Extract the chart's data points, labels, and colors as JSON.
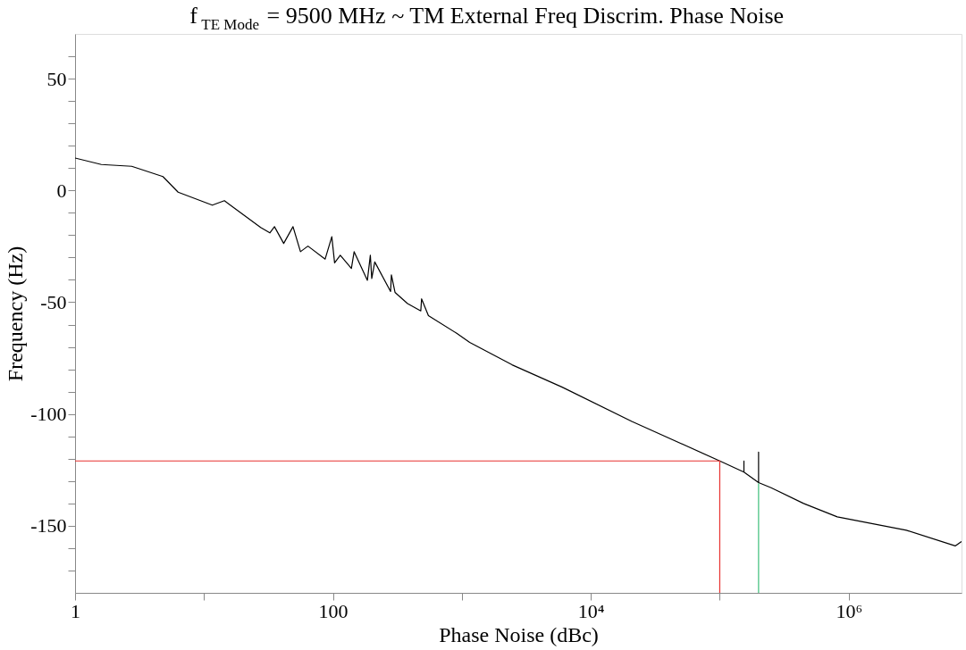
{
  "chart_data": {
    "type": "line",
    "title": "f$_{TE Mode}$ = 9500 MHz ~ TM External Freq Discrim. Phase Noise",
    "xlabel": "Phase Noise (dBc)",
    "ylabel": "Frequency (Hz)",
    "log": "x",
    "grid": false,
    "legend": false,
    "marker": "none",
    "line_style": "solid",
    "xlim": [
      1,
      7500000
    ],
    "ylim": [
      -180,
      70
    ],
    "xticks": [
      1,
      {
        "value": 10,
        "label": null
      },
      100,
      {
        "value": 1000,
        "label": null
      },
      {
        "value": 10000,
        "label": "10⁴"
      },
      {
        "value": 100000,
        "label": null
      },
      {
        "value": 1000000,
        "label": "10⁶"
      }
    ],
    "yticks": [
      {
        "value": -170,
        "label": null
      },
      {
        "value": -160,
        "label": null
      },
      -150,
      {
        "value": -140,
        "label": null
      },
      {
        "value": -130,
        "label": null
      },
      {
        "value": -120,
        "label": null
      },
      {
        "value": -110,
        "label": null
      },
      -100,
      {
        "value": -90,
        "label": null
      },
      {
        "value": -80,
        "label": null
      },
      {
        "value": -70,
        "label": null
      },
      {
        "value": -60,
        "label": null
      },
      -50,
      {
        "value": -40,
        "label": null
      },
      {
        "value": -30,
        "label": null
      },
      {
        "value": -20,
        "label": null
      },
      {
        "value": -10,
        "label": null
      },
      0,
      {
        "value": 10,
        "label": null
      },
      {
        "value": 20,
        "label": null
      },
      {
        "value": 30,
        "label": null
      },
      {
        "value": 40,
        "label": null
      },
      50,
      {
        "value": 60,
        "label": null
      }
    ],
    "series": [
      {
        "color": "#000000",
        "x": [
          1,
          1.6,
          2.75,
          4.8,
          6.3,
          11.6,
          14.4,
          27.5,
          32.4,
          35.2,
          41.5,
          49,
          56,
          64,
          87,
          98,
          103,
          114,
          139,
          146,
          185,
          195,
          200,
          211,
          280,
          284,
          303,
          379,
          480,
          487,
          550,
          911,
          1150,
          2450,
          6000,
          20800,
          100000,
          154000,
          154000,
          154000,
          200000,
          200000,
          200000,
          250000,
          447000,
          815000,
          2800000,
          6700000,
          7500000
        ],
        "values": [
          14.5,
          11.6,
          10.8,
          6.2,
          -0.8,
          -6.6,
          -4.6,
          -16.6,
          -19,
          -16.2,
          -23.7,
          -16.2,
          -27.4,
          -24.9,
          -30.7,
          -20.7,
          -32.4,
          -29,
          -34.9,
          -27.4,
          -40.2,
          -29,
          -39.4,
          -32,
          -45.2,
          -37.8,
          -45.6,
          -50.6,
          -53.9,
          -48.5,
          -56,
          -63.9,
          -68,
          -78,
          -88,
          -103.3,
          -121,
          -126,
          -121,
          -126,
          -130.7,
          -117,
          -130.7,
          -133,
          -140,
          -146,
          -152,
          -159,
          -157
        ]
      },
      {
        "color": "#e8312f",
        "x": [
          1,
          100000,
          100000
        ],
        "values": [
          -121,
          -121,
          -180
        ]
      },
      {
        "color": "#3dbf7a",
        "x": [
          200000,
          200000
        ],
        "values": [
          -131,
          -180
        ]
      }
    ]
  }
}
